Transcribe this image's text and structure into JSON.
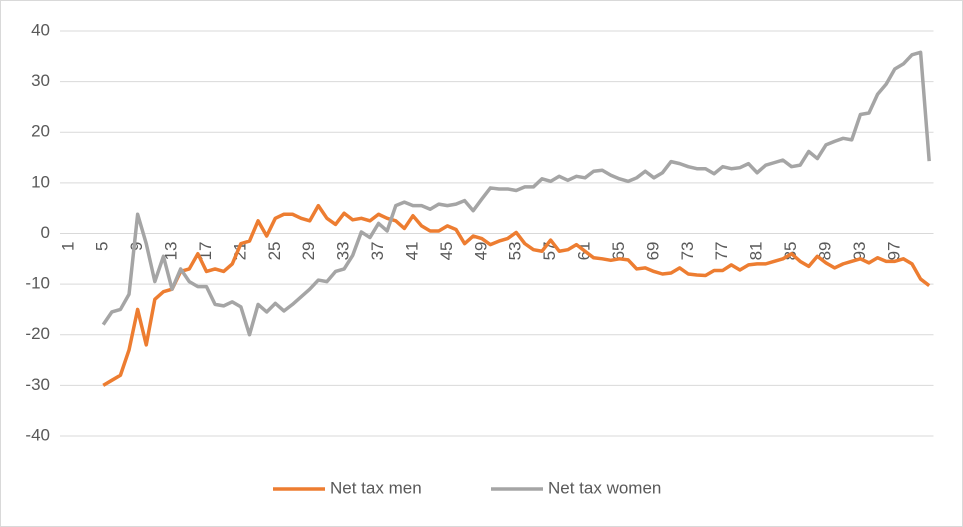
{
  "chart_data": {
    "type": "line",
    "categories": [
      "1",
      null,
      null,
      null,
      "5",
      null,
      null,
      null,
      "9",
      null,
      null,
      null,
      "13",
      null,
      null,
      null,
      "17",
      null,
      null,
      null,
      "21",
      null,
      null,
      null,
      "25",
      null,
      null,
      null,
      "29",
      null,
      null,
      null,
      "33",
      null,
      null,
      null,
      "37",
      null,
      null,
      null,
      "41",
      null,
      null,
      null,
      "45",
      null,
      null,
      null,
      "49",
      null,
      null,
      null,
      "53",
      null,
      null,
      null,
      "57",
      null,
      null,
      null,
      "61",
      null,
      null,
      null,
      "65",
      null,
      null,
      null,
      "69",
      null,
      null,
      null,
      "73",
      null,
      null,
      null,
      "77",
      null,
      null,
      null,
      "81",
      null,
      null,
      null,
      "85",
      null,
      null,
      null,
      "89",
      null,
      null,
      null,
      "93",
      null,
      null,
      null,
      "97",
      null,
      null,
      null,
      null
    ],
    "series": [
      {
        "name": "Net tax men",
        "color": "#ED7D31",
        "values": [
          null,
          null,
          null,
          null,
          -30,
          -29,
          -28,
          -23,
          -15,
          -22,
          -13,
          -11.5,
          -11,
          -7.5,
          -7,
          -4,
          -7.5,
          -7,
          -7.5,
          -6,
          -2,
          -1.5,
          2.5,
          -0.5,
          3,
          3.8,
          3.8,
          3,
          2.5,
          5.5,
          3,
          1.8,
          4,
          2.7,
          3,
          2.5,
          3.8,
          3,
          2.5,
          1,
          3.5,
          1.5,
          0.5,
          0.5,
          1.5,
          0.8,
          -2,
          -0.5,
          -1,
          -2.2,
          -1.5,
          -1,
          0.2,
          -2,
          -3.2,
          -3.5,
          -1.3,
          -3.5,
          -3.2,
          -2.2,
          -3.5,
          -4.8,
          -5,
          -5.3,
          -5,
          -5.2,
          -7,
          -6.8,
          -7.5,
          -8,
          -7.8,
          -6.8,
          -8,
          -8.2,
          -8.3,
          -7.3,
          -7.3,
          -6.2,
          -7.2,
          -6.2,
          -6,
          -6,
          -5.5,
          -5,
          -4,
          -5.5,
          -6.5,
          -4.5,
          -5.8,
          -6.8,
          -6,
          -5.5,
          -5,
          -5.8,
          -4.8,
          -5.5,
          -5.5,
          -5,
          -6,
          -9,
          -10.3
        ]
      },
      {
        "name": "Net tax women",
        "color": "#A5A5A5",
        "values": [
          null,
          null,
          null,
          null,
          -18,
          -15.5,
          -15,
          -12,
          3.8,
          -2,
          -9.5,
          -4.5,
          -11,
          -7,
          -9.5,
          -10.5,
          -10.5,
          -14,
          -14.3,
          -13.5,
          -14.5,
          -20,
          -14,
          -15.5,
          -13.8,
          -15.3,
          -14,
          -12.5,
          -11,
          -9.2,
          -9.5,
          -7.5,
          -7,
          -4.3,
          0.3,
          -0.8,
          2,
          0.5,
          5.5,
          6.2,
          5.5,
          5.5,
          4.8,
          5.8,
          5.5,
          5.8,
          6.5,
          4.5,
          6.8,
          9,
          8.8,
          8.8,
          8.5,
          9.2,
          9.2,
          10.8,
          10.3,
          11.3,
          10.5,
          11.3,
          11,
          12.3,
          12.5,
          11.5,
          10.8,
          10.3,
          11,
          12.3,
          11,
          12,
          14.2,
          13.8,
          13.2,
          12.8,
          12.8,
          11.8,
          13.2,
          12.8,
          13,
          13.8,
          12,
          13.5,
          14,
          14.5,
          13.2,
          13.5,
          16.2,
          14.8,
          17.5,
          18.2,
          18.8,
          18.5,
          23.5,
          23.8,
          27.5,
          29.5,
          32.5,
          33.5,
          35.3,
          35.8,
          14.3
        ]
      }
    ],
    "ylim": [
      -40,
      40
    ],
    "yticks": [
      -40,
      -30,
      -20,
      -10,
      0,
      10,
      20,
      30,
      40
    ],
    "grid": true,
    "legend": "bottom"
  }
}
